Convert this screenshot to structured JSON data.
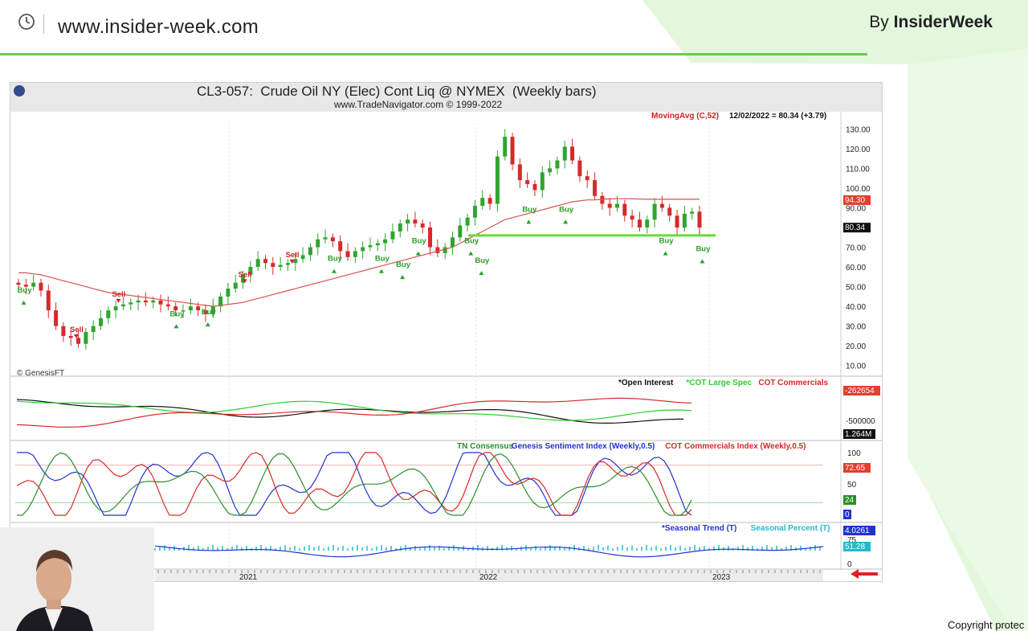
{
  "header": {
    "site_url": "www.insider-week.com",
    "byline_prefix": "By",
    "byline_brand": "InsiderWeek"
  },
  "footer": {
    "copyright": "Copyright protec"
  },
  "colors": {
    "accent_green": "#6fc94f",
    "ma_red": "#d9534f",
    "support_green": "#66dd33",
    "buy": "#2aa02a",
    "sell": "#cc2222"
  },
  "chart_data": {
    "type": "candlestick",
    "title": "CL3-057:  Crude Oil NY (Elec) Cont Liq @ NYMEX  (Weekly bars)",
    "subtitle": "www.TradeNavigator.com © 1999-2022",
    "watermark": "© GenesisFT",
    "moving_avg_label": "MovingAvg (C,52)",
    "moving_avg_value": "12/02/2022 = 80.34 (+3.79)",
    "price_axis": {
      "ticks": [
        "130.00",
        "120.00",
        "110.00",
        "100.00",
        "90.00",
        "80.00",
        "70.00",
        "60.00",
        "50.00",
        "40.00",
        "30.00",
        "20.00",
        "10.00"
      ],
      "ylim": [
        5,
        133
      ]
    },
    "price_badges": {
      "ma": "94.30",
      "last": "80.34"
    },
    "x_labels": [
      "2021",
      "2022",
      "2023"
    ],
    "support_level": 76,
    "close_series": [
      51,
      50,
      52,
      48,
      38,
      30,
      25,
      24,
      21,
      27,
      30,
      34,
      38,
      40,
      41,
      42,
      43,
      42,
      43,
      41,
      40,
      38,
      38,
      40,
      38,
      36,
      40,
      45,
      49,
      52,
      56,
      60,
      64,
      62,
      60,
      61,
      62,
      64,
      66,
      70,
      74,
      75,
      73,
      68,
      65,
      68,
      70,
      71,
      72,
      74,
      78,
      82,
      84,
      82,
      80,
      70,
      67,
      70,
      75,
      81,
      85,
      91,
      95,
      92,
      116,
      126,
      112,
      104,
      102,
      99,
      108,
      110,
      114,
      121,
      114,
      106,
      104,
      96,
      92,
      90,
      92,
      86,
      84,
      80,
      84,
      92,
      90,
      86,
      80,
      87,
      88,
      80
    ],
    "moving_avg": [
      57,
      57,
      56.5,
      56,
      55,
      54,
      53,
      52,
      51,
      50,
      49,
      48,
      47,
      46.5,
      46,
      45.5,
      45,
      44.5,
      44,
      43.5,
      43,
      42.5,
      42,
      41.5,
      41,
      40.5,
      40,
      40.5,
      41,
      41.5,
      42,
      43,
      44,
      45,
      46,
      47,
      48,
      49,
      50,
      51,
      52,
      53,
      54,
      55,
      56,
      57,
      58,
      59,
      60,
      61,
      62,
      63,
      64,
      65,
      66,
      67,
      68,
      69,
      70,
      72,
      74,
      76,
      78,
      80,
      82,
      84,
      85,
      86,
      87,
      88,
      89,
      90,
      91,
      92,
      93,
      93.5,
      94,
      94,
      94.3,
      94.5,
      94.6,
      94.6,
      94.5,
      94.4,
      94.3,
      94.3,
      94.3,
      94.3,
      94.3,
      94.3,
      94.3,
      94.3
    ],
    "signals": [
      {
        "label": "Buy",
        "i": 1,
        "price": 47
      },
      {
        "label": "Sell",
        "i": 11,
        "price": 27
      },
      {
        "label": "Sell",
        "i": 19,
        "price": 45
      },
      {
        "label": "Buy",
        "i": 30,
        "price": 35
      },
      {
        "label": "Buy",
        "i": 36,
        "price": 36
      },
      {
        "label": "Sell",
        "i": 43,
        "price": 55
      },
      {
        "label": "Sell",
        "i": 52,
        "price": 65
      },
      {
        "label": "Buy",
        "i": 60,
        "price": 63
      },
      {
        "label": "Buy",
        "i": 69,
        "price": 63
      },
      {
        "label": "Buy",
        "i": 73,
        "price": 60
      },
      {
        "label": "Buy",
        "i": 76,
        "price": 72
      },
      {
        "label": "Buy",
        "i": 86,
        "price": 72
      },
      {
        "label": "Buy",
        "i": 88,
        "price": 62
      },
      {
        "label": "Buy",
        "i": 97,
        "price": 88
      },
      {
        "label": "Buy",
        "i": 104,
        "price": 88
      },
      {
        "label": "Buy",
        "i": 123,
        "price": 72
      },
      {
        "label": "Buy",
        "i": 130,
        "price": 68
      }
    ],
    "cot_panel": {
      "legend": [
        {
          "name": "*Open Interest",
          "color": "#111111"
        },
        {
          "name": "*COT Large Spec",
          "color": "#33cc33"
        },
        {
          "name": "COT Commercials",
          "color": "#d62a2a"
        }
      ],
      "axis_label": "-500000",
      "badges": {
        "red": "-262654",
        "black": "1.264M"
      }
    },
    "index_panel": {
      "legend": [
        {
          "name": "TN Consensus",
          "color": "#2a8f2a"
        },
        {
          "name": "Genesis Sentiment Index (Weekly,0.5)",
          "color": "#2233cc"
        },
        {
          "name": "COT Commercials Index (Weekly,0.5)",
          "color": "#d62a2a"
        }
      ],
      "ticks": [
        "100",
        "50",
        "0"
      ],
      "badges": {
        "red": "72.65",
        "green": "24",
        "blue": "0"
      }
    },
    "seasonal_panel": {
      "legend": [
        {
          "name": "*Seasonal Trend (T)",
          "color": "#2233cc"
        },
        {
          "name": "Seasonal Percent (T)",
          "color": "#22bbcc"
        }
      ],
      "ticks": [
        "75",
        "0"
      ],
      "badges": {
        "blue": "4.0261",
        "cyan": "51.28"
      }
    }
  }
}
